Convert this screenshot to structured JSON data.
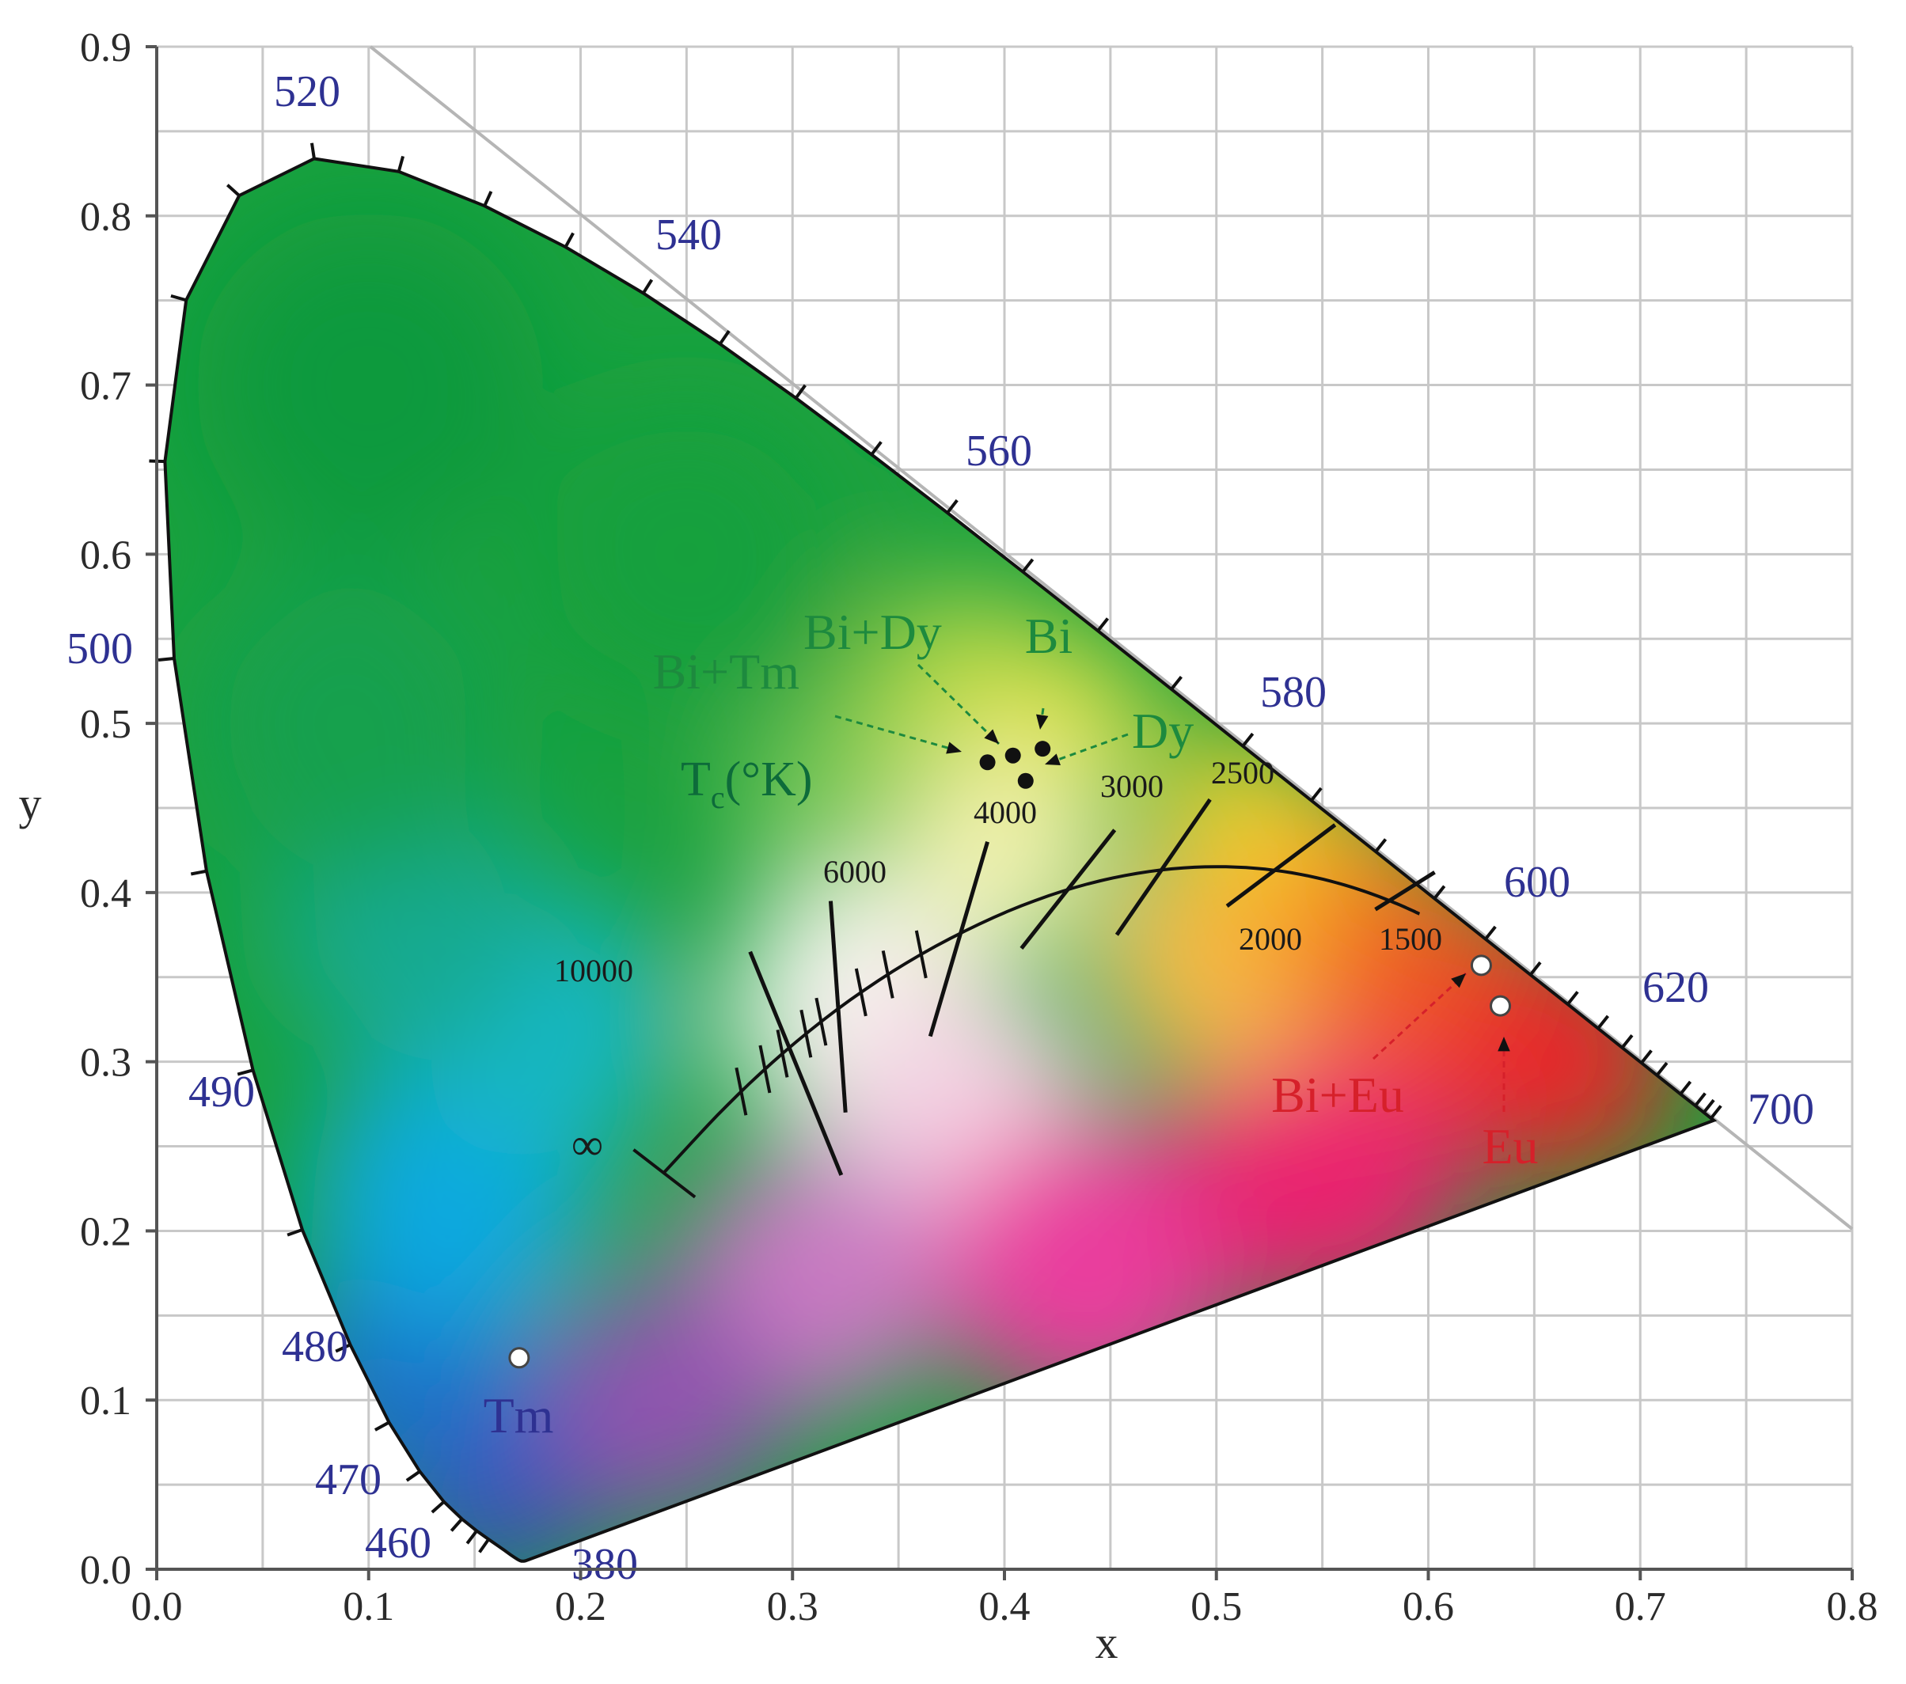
{
  "chart_data": {
    "type": "scatter",
    "subtype": "CIE 1931 chromaticity diagram",
    "xlabel": "x",
    "ylabel": "y",
    "xlim": [
      0,
      0.8
    ],
    "ylim": [
      0,
      0.9
    ],
    "xticks": [
      "0.0",
      "0.1",
      "0.2",
      "0.3",
      "0.4",
      "0.5",
      "0.6",
      "0.7",
      "0.8"
    ],
    "yticks": [
      "0.0",
      "0.1",
      "0.2",
      "0.3",
      "0.4",
      "0.5",
      "0.6",
      "0.7",
      "0.8",
      "0.9"
    ],
    "grid": true,
    "spectral_locus_labels": [
      {
        "label": "380",
        "x": 0.1741,
        "y": 0.005
      },
      {
        "label": "460",
        "x": 0.144,
        "y": 0.0297
      },
      {
        "label": "470",
        "x": 0.1241,
        "y": 0.0578
      },
      {
        "label": "480",
        "x": 0.0913,
        "y": 0.1327
      },
      {
        "label": "490",
        "x": 0.0454,
        "y": 0.295
      },
      {
        "label": "500",
        "x": 0.0082,
        "y": 0.5384
      },
      {
        "label": "520",
        "x": 0.0743,
        "y": 0.8338
      },
      {
        "label": "540",
        "x": 0.2296,
        "y": 0.7543
      },
      {
        "label": "560",
        "x": 0.3731,
        "y": 0.6245
      },
      {
        "label": "580",
        "x": 0.5125,
        "y": 0.4866
      },
      {
        "label": "600",
        "x": 0.627,
        "y": 0.3725
      },
      {
        "label": "620",
        "x": 0.6915,
        "y": 0.3083
      },
      {
        "label": "700",
        "x": 0.7347,
        "y": 0.2653
      }
    ],
    "planckian_label": "T",
    "planckian_label_sub": "c",
    "planckian_label_unit": "(°K)",
    "cct_labels": [
      "10000",
      "6000",
      "4000",
      "3000",
      "2500",
      "2000",
      "1500",
      "∞"
    ],
    "points": [
      {
        "name": "Bi+Tm",
        "x": 0.392,
        "y": 0.477,
        "color": "#1d8a3e"
      },
      {
        "name": "Bi+Dy",
        "x": 0.404,
        "y": 0.481,
        "color": "#1d8a3e"
      },
      {
        "name": "Bi",
        "x": 0.418,
        "y": 0.485,
        "color": "#1d8a3e"
      },
      {
        "name": "Dy",
        "x": 0.41,
        "y": 0.466,
        "color": "#1d8a3e"
      },
      {
        "name": "Bi+Eu",
        "x": 0.625,
        "y": 0.357,
        "color": "#d6202a"
      },
      {
        "name": "Eu",
        "x": 0.634,
        "y": 0.333,
        "color": "#d6202a"
      },
      {
        "name": "Tm",
        "x": 0.171,
        "y": 0.125,
        "color": "#2e3192"
      }
    ]
  }
}
